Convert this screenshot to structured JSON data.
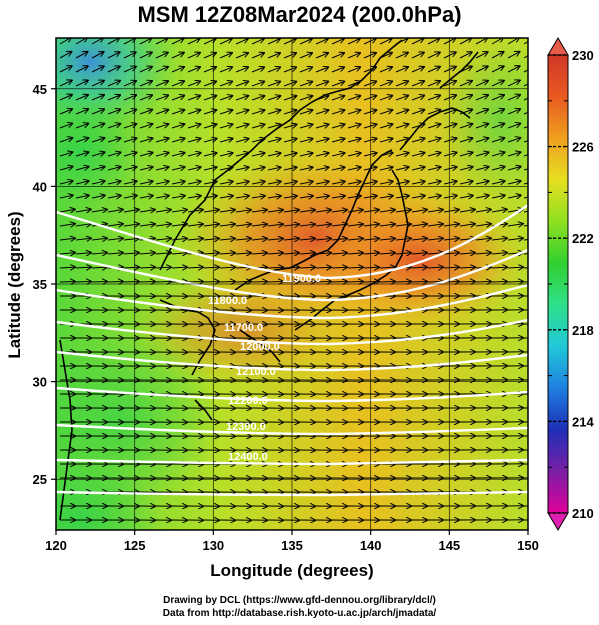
{
  "title": "MSM 12Z08Mar2024 (200.0hPa)",
  "map": {
    "x_axis": {
      "label": "Longitude (degrees)",
      "range": [
        120,
        150
      ],
      "ticks": [
        "120",
        "125",
        "130",
        "135",
        "140",
        "145",
        "150"
      ]
    },
    "y_axis": {
      "label": "Latitude  (degrees)",
      "range": [
        22.4,
        47.6
      ],
      "ticks": [
        "25",
        "30",
        "35",
        "40",
        "45"
      ]
    },
    "grid": true,
    "fill_variable_note": "temperature-like shading, colorbar 210–230",
    "colorbar": {
      "min": 210,
      "max": 230,
      "tick_labels": [
        "230",
        "226",
        "222",
        "218",
        "214",
        "210"
      ],
      "stops": [
        "#e0009a",
        "#7a1fa6",
        "#1e2fb8",
        "#1f7fe0",
        "#20c8d8",
        "#2fe08a",
        "#30d030",
        "#8ee020",
        "#e6e020",
        "#f0a020",
        "#e85a20",
        "#d03828"
      ]
    },
    "contour_labels": [
      "11900.0",
      "11800.0",
      "11700.0",
      "12000.0",
      "12100.0",
      "12200.0",
      "12300.0",
      "12400.0"
    ]
  },
  "credits": {
    "line1": "Drawing by DCL (https://www.gfd-dennou.org/library/dcl/)",
    "line2": "Data from http://database.rish.kyoto-u.ac.jp/arch/jmadata/"
  }
}
